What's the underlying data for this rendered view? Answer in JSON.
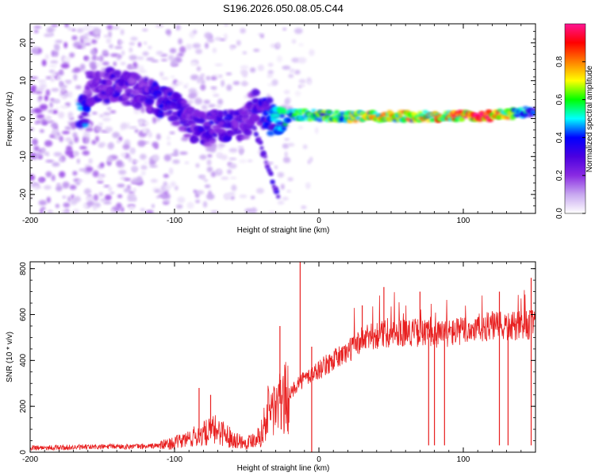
{
  "title": "S196.2026.050.08.05.C44",
  "chart_data": [
    {
      "type": "heatmap",
      "name": "spectrogram",
      "xlabel": "Height of straight line (km)",
      "ylabel": "Frequency (Hz)",
      "xlim": [
        -200,
        150
      ],
      "ylim": [
        -25,
        25
      ],
      "xticks": [
        -200,
        -100,
        0,
        100
      ],
      "yticks": [
        -20,
        -10,
        0,
        10,
        20
      ],
      "colorbar": {
        "label": "Normalized spectral amplitude",
        "ticks": [
          0.0,
          0.2,
          0.4,
          0.6,
          0.8
        ],
        "range": [
          0,
          1
        ],
        "colors": [
          "#ffffff",
          "#c8a8f0",
          "#8a2be2",
          "#4b00e0",
          "#0000ff",
          "#00ffff",
          "#00ff00",
          "#ffff00",
          "#ff7f00",
          "#ff0000",
          "#ff1493"
        ]
      },
      "ridge": {
        "x": [
          -160,
          -140,
          -125,
          -110,
          -100,
          -90,
          -80,
          -70,
          -60,
          -50,
          -45,
          -40,
          -35,
          -30,
          -25,
          -20,
          -10,
          0,
          20,
          40,
          60,
          80,
          100,
          120,
          140,
          150
        ],
        "freq": [
          8,
          9,
          7,
          5,
          3,
          -1,
          -3,
          -2,
          -2,
          -1,
          4,
          2,
          1,
          -1,
          -2,
          1,
          1,
          0.8,
          0.5,
          0.6,
          0.6,
          0.6,
          0.6,
          0.8,
          1.5,
          2
        ],
        "amplitude": [
          0.25,
          0.3,
          0.25,
          0.35,
          0.3,
          0.3,
          0.3,
          0.3,
          0.3,
          0.25,
          0.3,
          0.3,
          0.4,
          0.45,
          0.5,
          0.55,
          0.6,
          0.6,
          0.65,
          0.7,
          0.7,
          0.75,
          0.85,
          0.9,
          0.5,
          0.4
        ]
      }
    },
    {
      "type": "line",
      "name": "snr",
      "xlabel": "Height of straight line (km)",
      "ylabel": "SNR (10 * v/v)",
      "xlim": [
        -200,
        150
      ],
      "ylim": [
        0,
        830
      ],
      "xticks": [
        -200,
        -100,
        0,
        100
      ],
      "yticks": [
        0,
        200,
        400,
        600,
        800
      ],
      "series": [
        {
          "name": "SNR",
          "color": "#e82020",
          "x": [
            -200,
            -180,
            -160,
            -140,
            -120,
            -110,
            -100,
            -90,
            -80,
            -70,
            -60,
            -50,
            -40,
            -35,
            -30,
            -25,
            -20,
            -15,
            -10,
            0,
            10,
            20,
            30,
            40,
            50,
            60,
            70,
            80,
            90,
            100,
            110,
            120,
            130,
            140,
            150
          ],
          "values": [
            20,
            20,
            22,
            25,
            25,
            30,
            40,
            60,
            80,
            100,
            60,
            40,
            80,
            180,
            200,
            220,
            250,
            300,
            320,
            360,
            400,
            440,
            490,
            510,
            520,
            525,
            520,
            515,
            520,
            530,
            540,
            550,
            545,
            550,
            560
          ],
          "spikes": [
            {
              "x": -83,
              "y": 280
            },
            {
              "x": -75,
              "y": 250
            },
            {
              "x": -27,
              "y": 550
            },
            {
              "x": -13,
              "y": 830
            },
            {
              "x": -5,
              "y": 460
            },
            {
              "x": 30,
              "y": 640
            },
            {
              "x": 45,
              "y": 720
            },
            {
              "x": 70,
              "y": 700
            },
            {
              "x": 125,
              "y": 700
            },
            {
              "x": 147,
              "y": 760
            }
          ],
          "dropouts": [
            {
              "x": -5,
              "y": 0
            },
            {
              "x": 76,
              "y": 30
            },
            {
              "x": 80,
              "y": 30
            },
            {
              "x": 87,
              "y": 30
            },
            {
              "x": 125,
              "y": 30
            },
            {
              "x": 131,
              "y": 30
            },
            {
              "x": 147,
              "y": 30
            }
          ]
        }
      ]
    }
  ]
}
